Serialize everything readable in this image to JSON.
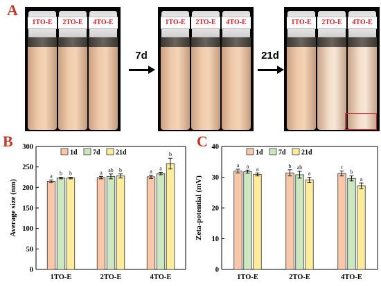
{
  "panel_letters": {
    "a": "A",
    "b": "B",
    "c": "C"
  },
  "photos": [
    {
      "bottles": [
        "1TO-E",
        "2TO-E",
        "4TO-E"
      ],
      "separated": [
        false,
        false,
        false
      ]
    },
    {
      "bottles": [
        "1TO-E",
        "2TO-E",
        "4TO-E"
      ],
      "separated": [
        false,
        false,
        false
      ]
    },
    {
      "bottles": [
        "1TO-E",
        "2TO-E",
        "4TO-E"
      ],
      "separated": [
        false,
        true,
        true
      ]
    }
  ],
  "arrows": [
    "7d",
    "21d"
  ],
  "colors": {
    "1d": "#f9c8aa",
    "7d": "#cde8c0",
    "21d": "#fcec9c",
    "bar_outline": "#333333",
    "letter": "#c0392b"
  },
  "chart_data": [
    {
      "type": "bar",
      "categories": [
        "1TO-E",
        "2TO-E",
        "4TO-E"
      ],
      "series": [
        {
          "name": "1d",
          "values": [
            215,
            224,
            226
          ],
          "errors": [
            3,
            3,
            4
          ],
          "letters": [
            "a",
            "a",
            "a"
          ]
        },
        {
          "name": "7d",
          "values": [
            223,
            227,
            234
          ],
          "errors": [
            2,
            6,
            3
          ],
          "letters": [
            "b",
            "ab",
            "a"
          ]
        },
        {
          "name": "21d",
          "values": [
            223,
            228,
            258
          ],
          "errors": [
            2,
            5,
            13
          ],
          "letters": [
            "b",
            "b",
            "b"
          ]
        }
      ],
      "xlabel": "",
      "ylabel": "Average size (nm)",
      "ylim": [
        0,
        300
      ],
      "yticks": [
        "0",
        "50",
        "100",
        "150",
        "200",
        "250",
        "300"
      ],
      "legend": "top-left",
      "grid": false
    },
    {
      "type": "bar",
      "categories": [
        "1TO-E",
        "2TO-E",
        "4TO-E"
      ],
      "series": [
        {
          "name": "1d",
          "values": [
            32.0,
            31.4,
            31.2
          ],
          "errors": [
            0.6,
            1.0,
            0.8
          ],
          "letters": [
            "a",
            "b",
            "c"
          ]
        },
        {
          "name": "7d",
          "values": [
            31.8,
            30.8,
            29.6
          ],
          "errors": [
            0.5,
            1.1,
            0.8
          ],
          "letters": [
            "a",
            "ab",
            "b"
          ]
        },
        {
          "name": "21d",
          "values": [
            30.9,
            29.1,
            27.2
          ],
          "errors": [
            0.5,
            0.9,
            0.9
          ],
          "letters": [
            "a",
            "a",
            "a"
          ]
        }
      ],
      "xlabel": "",
      "ylabel": "Zeta-potential (mV)",
      "ylim": [
        0,
        40
      ],
      "yticks": [
        "0",
        "10",
        "20",
        "30",
        "40"
      ],
      "legend": "top-left",
      "grid": false
    }
  ]
}
